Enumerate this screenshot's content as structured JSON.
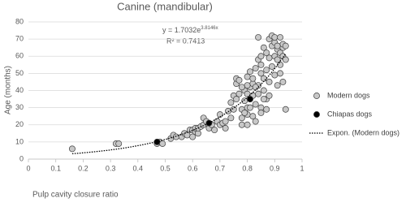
{
  "chart_data": {
    "type": "scatter",
    "title": "Canine (mandibular)",
    "x_label": "Pulp cavity closure ratio",
    "y_label": "Age (months)",
    "xlim": [
      0,
      1
    ],
    "xticks": [
      0,
      0.1,
      0.2,
      0.3,
      0.4,
      0.5,
      0.6,
      0.7,
      0.8,
      0.9,
      1
    ],
    "ylim": [
      0,
      80
    ],
    "yticks": [
      0,
      10,
      20,
      30,
      40,
      50,
      60,
      70,
      80
    ],
    "grid": true,
    "series": [
      {
        "name": "Modern dogs",
        "color": "#c8c8c8",
        "x": [
          0.16,
          0.32,
          0.33,
          0.47,
          0.48,
          0.49,
          0.52,
          0.53,
          0.54,
          0.56,
          0.57,
          0.58,
          0.59,
          0.6,
          0.6,
          0.61,
          0.61,
          0.62,
          0.62,
          0.63,
          0.64,
          0.64,
          0.65,
          0.66,
          0.67,
          0.68,
          0.69,
          0.7,
          0.7,
          0.71,
          0.72,
          0.72,
          0.73,
          0.74,
          0.74,
          0.75,
          0.75,
          0.76,
          0.76,
          0.77,
          0.77,
          0.78,
          0.78,
          0.78,
          0.79,
          0.79,
          0.8,
          0.8,
          0.8,
          0.8,
          0.8,
          0.81,
          0.81,
          0.81,
          0.81,
          0.82,
          0.82,
          0.82,
          0.82,
          0.83,
          0.83,
          0.83,
          0.84,
          0.84,
          0.84,
          0.84,
          0.85,
          0.85,
          0.85,
          0.85,
          0.86,
          0.86,
          0.86,
          0.87,
          0.87,
          0.87,
          0.87,
          0.88,
          0.88,
          0.88,
          0.89,
          0.89,
          0.89,
          0.9,
          0.9,
          0.9,
          0.9,
          0.91,
          0.91,
          0.91,
          0.91,
          0.92,
          0.92,
          0.92,
          0.92,
          0.93,
          0.93,
          0.93,
          0.94,
          0.94,
          0.94,
          0.93,
          0.86,
          0.83,
          0.8,
          0.78,
          0.76,
          0.79,
          0.85,
          0.88
        ],
        "values": [
          6,
          9,
          9,
          9,
          10,
          9,
          12,
          14,
          13,
          13,
          15,
          14,
          17,
          13,
          17,
          16,
          18,
          15,
          18,
          19,
          20,
          24,
          22,
          18,
          20,
          17,
          22,
          20,
          26,
          21,
          22,
          18,
          28,
          24,
          33,
          29,
          37,
          44,
          47,
          38,
          46,
          29,
          24,
          20,
          40,
          34,
          30,
          20,
          38,
          48,
          26,
          35,
          42,
          30,
          51,
          37,
          25,
          44,
          47,
          32,
          22,
          53,
          58,
          43,
          38,
          71,
          50,
          60,
          55,
          30,
          65,
          47,
          40,
          62,
          52,
          35,
          29,
          59,
          45,
          70,
          66,
          54,
          72,
          68,
          60,
          49,
          71,
          64,
          58,
          66,
          43,
          71,
          62,
          55,
          50,
          65,
          60,
          67,
          58,
          29,
          66,
          45,
          35,
          42,
          43,
          42,
          35,
          27,
          27,
          37
        ]
      },
      {
        "name": "Chiapas dogs",
        "color": "#000000",
        "x": [
          0.47,
          0.66,
          0.81
        ],
        "values": [
          10,
          21,
          35
        ]
      }
    ],
    "trendline": {
      "name": "Expon. (Modern dogs)",
      "color": "#000000",
      "a": 1.7032,
      "b": 3.8146,
      "x_range": [
        0.16,
        0.94
      ],
      "equation": "y = 1.7032e",
      "exponent": "3.8146x",
      "r_squared": "R² = 0.7413"
    }
  }
}
